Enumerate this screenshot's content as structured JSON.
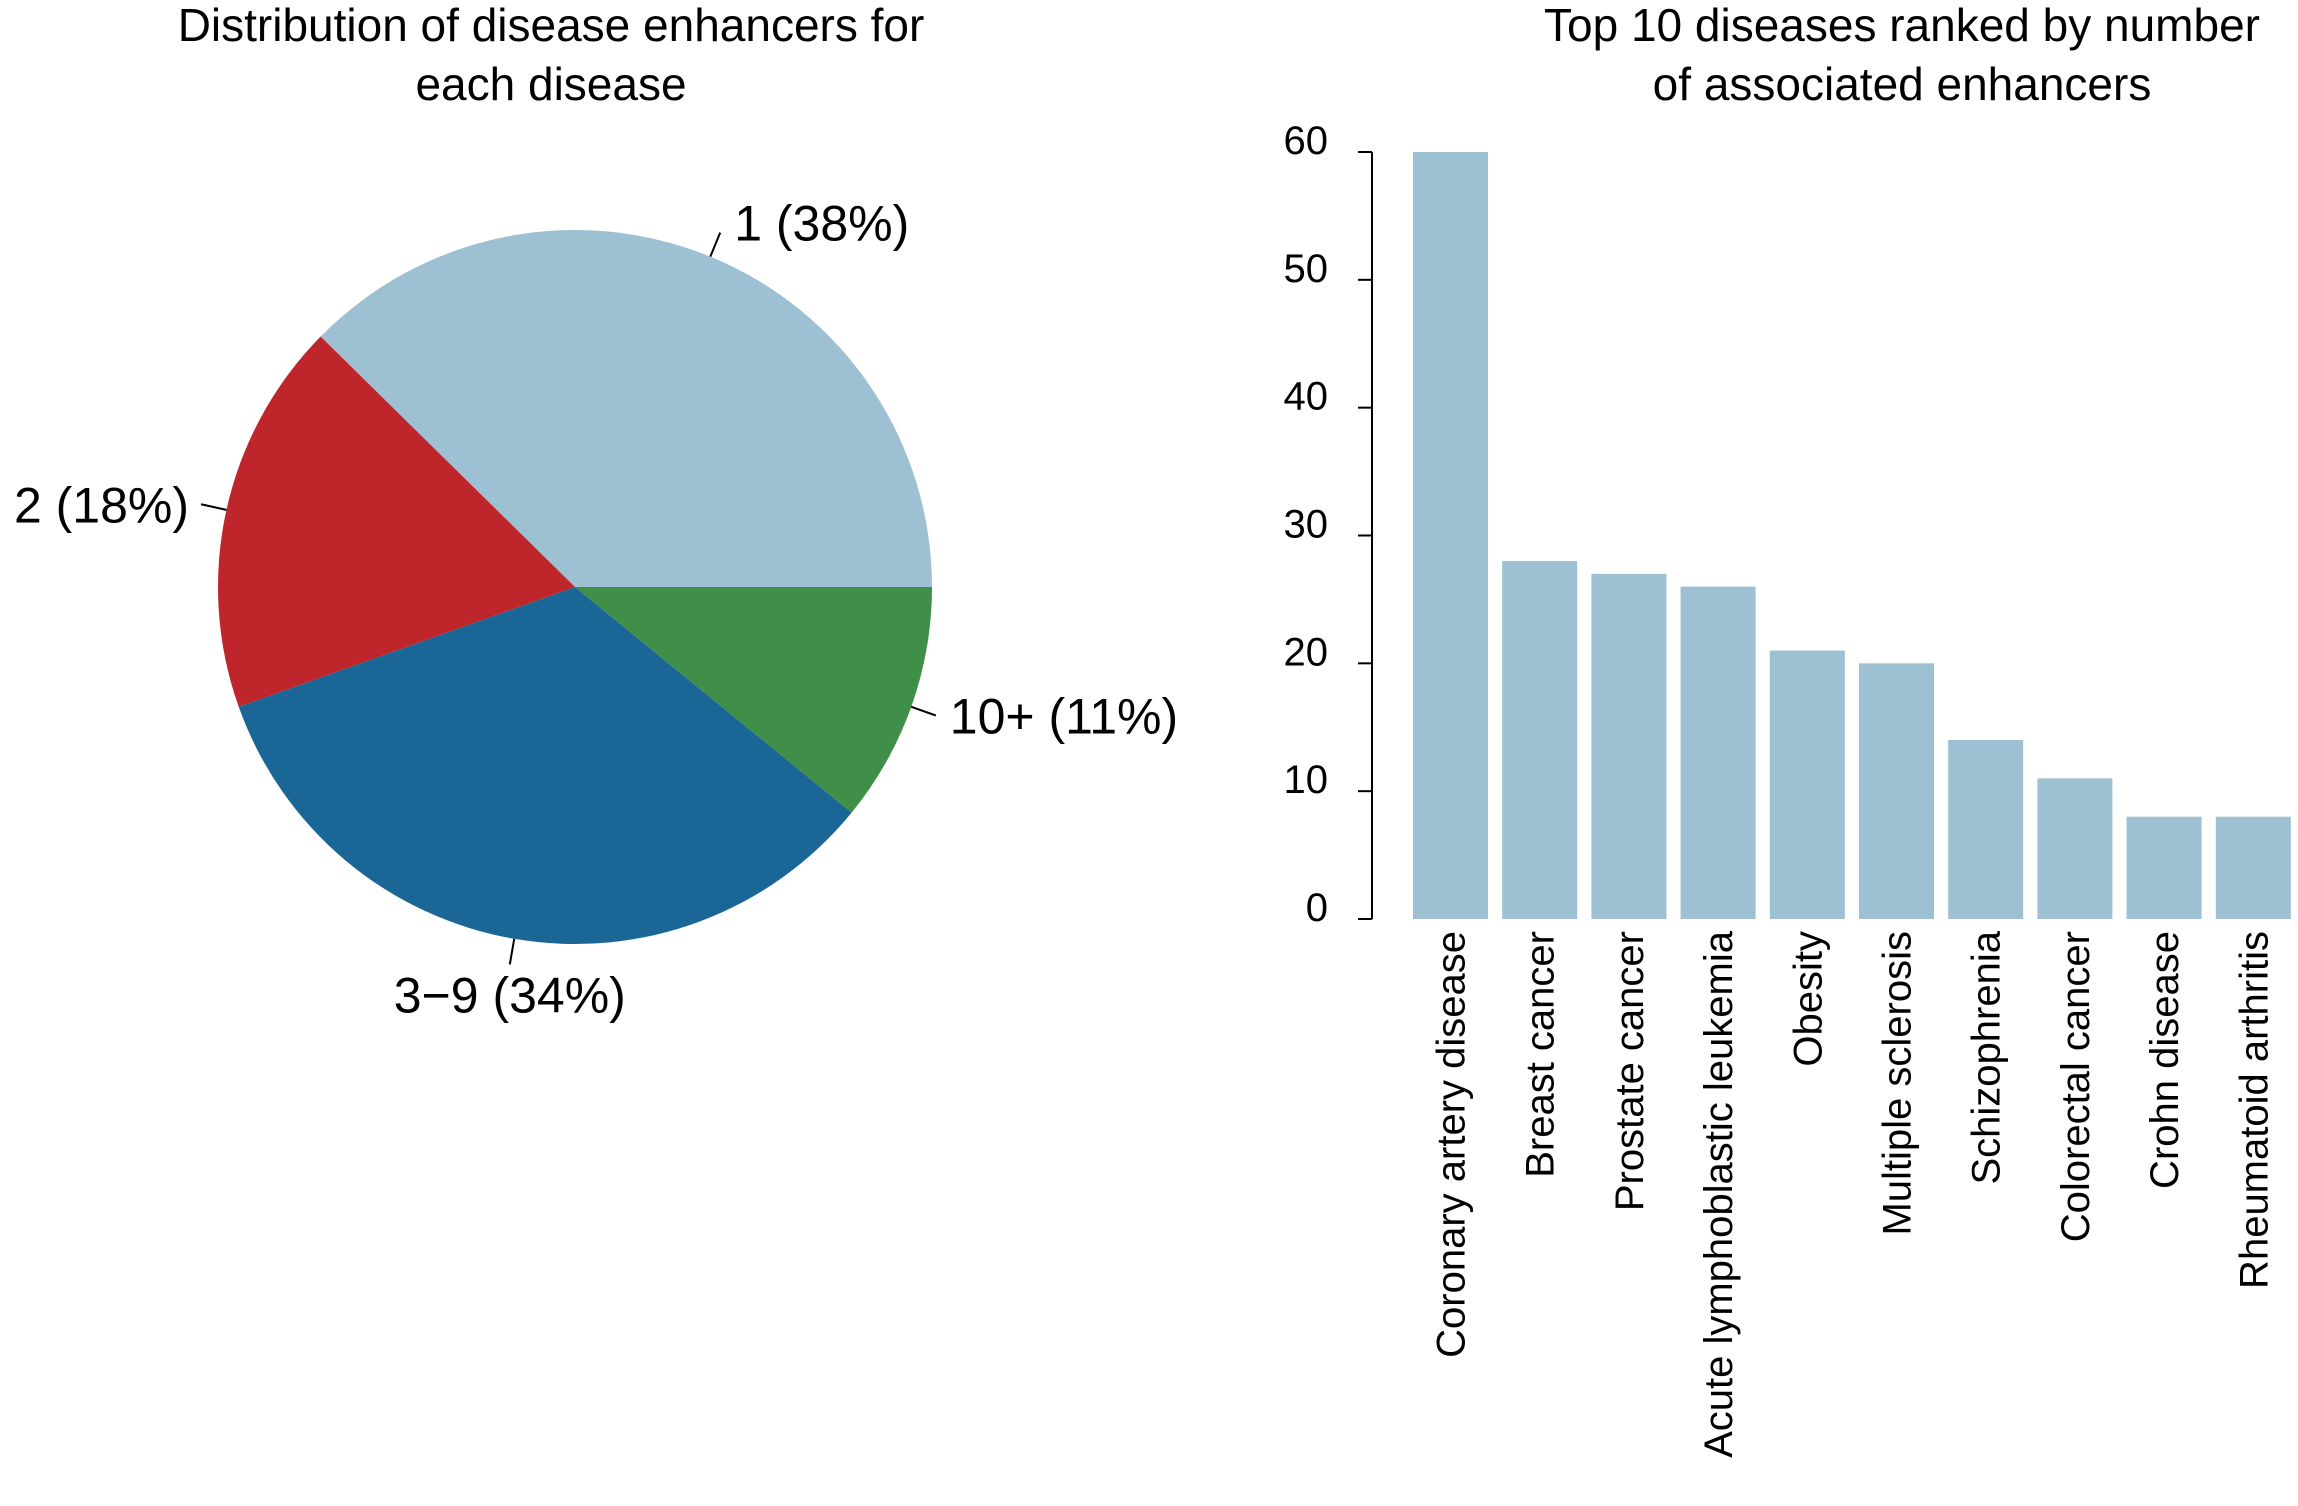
{
  "chart_data": [
    {
      "type": "pie",
      "title": [
        "Distribution of disease enhancers for",
        "each disease"
      ],
      "slices": [
        {
          "label": "1 (38%)",
          "category": "1",
          "percent": 38,
          "color": "#9dc0d2"
        },
        {
          "label": "2 (18%)",
          "category": "2",
          "percent": 18,
          "color": "#be262b"
        },
        {
          "label": "3−9 (34%)",
          "category": "3−9",
          "percent": 34,
          "color": "#1a6697"
        },
        {
          "label": "10+ (11%)",
          "category": "10+",
          "percent": 11,
          "color": "#3f8f48"
        }
      ]
    },
    {
      "type": "bar",
      "title": [
        "Top 10 diseases ranked by number",
        "of associated enhancers"
      ],
      "categories": [
        "Coronary artery disease",
        "Breast cancer",
        "Prostate cancer",
        "Acute lymphoblastic leukemia",
        "Obesity",
        "Multiple sclerosis",
        "Schizophrenia",
        "Colorectal cancer",
        "Crohn disease",
        "Rheumatoid arthritis"
      ],
      "values": [
        60,
        28,
        27,
        26,
        21,
        20,
        14,
        11,
        8,
        8
      ],
      "yticks": [
        0,
        10,
        20,
        30,
        40,
        50,
        60
      ],
      "ylim": [
        0,
        60
      ],
      "xlabel": "",
      "ylabel": "",
      "bar_color": "#9dc0d2"
    }
  ]
}
